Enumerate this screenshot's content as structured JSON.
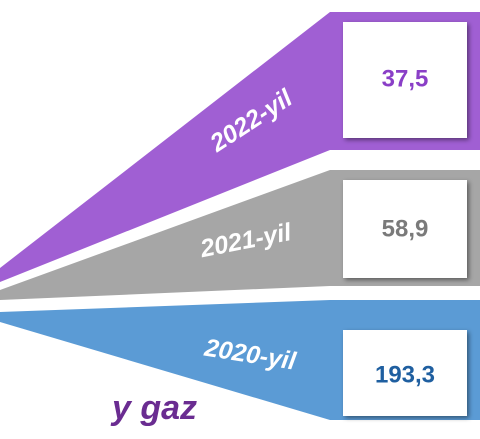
{
  "items": [
    {
      "label": "2022-yil",
      "value": "37,5"
    },
    {
      "label": "2021-yil",
      "value": "58,9"
    },
    {
      "label": "2020-yil",
      "value": "193,3"
    }
  ],
  "caption": "y gaz"
}
